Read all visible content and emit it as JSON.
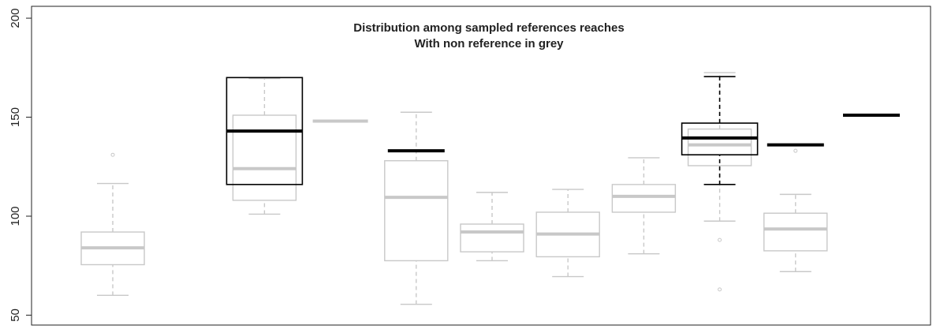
{
  "chart_data": {
    "type": "boxplot",
    "title": "Distribution among sampled references reaches",
    "subtitle": "With non reference in grey",
    "categories": [
      null,
      null,
      null,
      null,
      null,
      null,
      null,
      null,
      null,
      null,
      null
    ],
    "ylim": [
      45,
      206
    ],
    "yticks": [
      50,
      100,
      150,
      200
    ],
    "series": [
      {
        "color": "#c8c8c8",
        "values": [
          {
            "low": 60,
            "q1": 75.5,
            "median": 84,
            "q3": 92,
            "high": 116.5,
            "outliers": [
              131
            ]
          },
          null,
          {
            "low": 101,
            "q1": 108,
            "median": 124,
            "q3": 151,
            "high": 169.5,
            "outliers": []
          },
          {
            "low": 148,
            "q1": 148,
            "median": 148,
            "q3": 148,
            "high": 148,
            "outliers": []
          },
          {
            "low": 55.5,
            "q1": 77.5,
            "median": 109.5,
            "q3": 128,
            "high": 152.5,
            "outliers": []
          },
          {
            "low": 77.5,
            "q1": 82,
            "median": 92,
            "q3": 96,
            "high": 112,
            "outliers": []
          },
          {
            "low": 69.5,
            "q1": 79.5,
            "median": 91,
            "q3": 102,
            "high": 113.5,
            "outliers": []
          },
          {
            "low": 81,
            "q1": 102,
            "median": 110,
            "q3": 116,
            "high": 129.5,
            "outliers": []
          },
          {
            "low": 97.5,
            "q1": 125.5,
            "median": 136,
            "q3": 144,
            "high": 172.5,
            "outliers": [
              88,
              63
            ]
          },
          {
            "low": 72,
            "q1": 82.5,
            "median": 93.5,
            "q3": 101.5,
            "high": 111,
            "outliers": [
              133
            ]
          },
          null
        ]
      },
      {
        "color": "#000000",
        "values": [
          null,
          null,
          {
            "low": 116,
            "q1": 116,
            "median": 143,
            "q3": 170,
            "high": 170,
            "outliers": []
          },
          null,
          {
            "low": 133,
            "q1": 133,
            "median": 133,
            "q3": 133,
            "high": 133,
            "outliers": []
          },
          null,
          null,
          null,
          {
            "low": 116,
            "q1": 131,
            "median": 139.5,
            "q3": 147,
            "high": 170.5,
            "outliers": []
          },
          {
            "low": 136,
            "q1": 136,
            "median": 136,
            "q3": 136,
            "high": 136,
            "outliers": []
          },
          {
            "low": 151,
            "q1": 151,
            "median": 151,
            "q3": 151,
            "high": 151,
            "outliers": []
          }
        ]
      }
    ]
  }
}
